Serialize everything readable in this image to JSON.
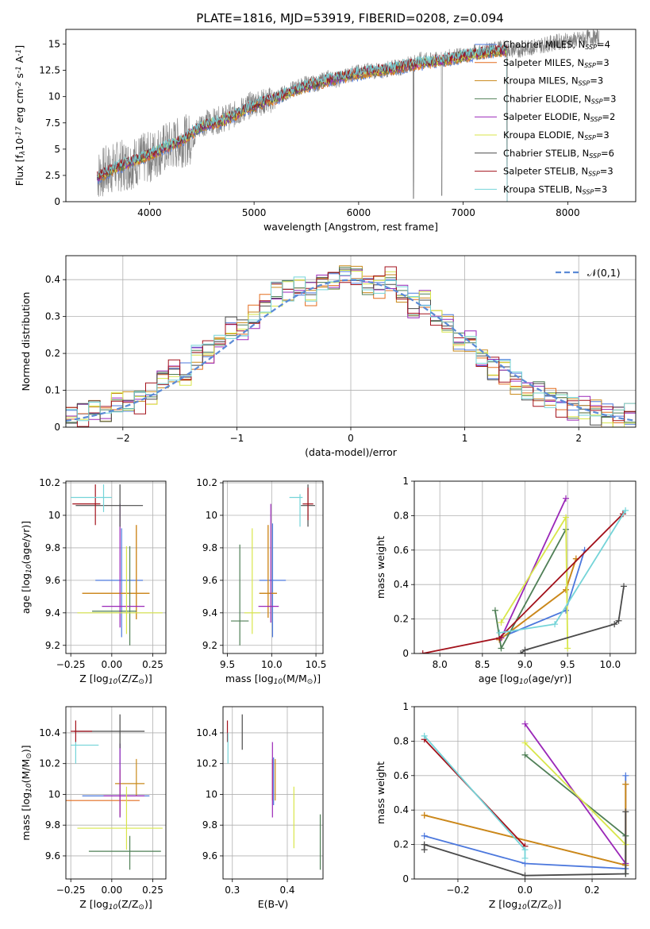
{
  "figure": {
    "title": "PLATE=1816, MJD=53919, FIBERID=0208, z=0.094"
  },
  "models": [
    {
      "name": "Chabrier MILES, N$_{SSP}$=4",
      "label_main": "Chabrier MILES, N",
      "label_sub": "SSP",
      "label_tail": "=4",
      "color": "#4c78dd"
    },
    {
      "name": "Salpeter MILES, N$_{SSP}$=3",
      "label_main": "Salpeter MILES, N",
      "label_sub": "SSP",
      "label_tail": "=3",
      "color": "#e36d1f"
    },
    {
      "name": "Kroupa MILES, N$_{SSP}$=3",
      "label_main": "Kroupa MILES, N",
      "label_sub": "SSP",
      "label_tail": "=3",
      "color": "#c98a1b"
    },
    {
      "name": "Chabrier ELODIE, N$_{SSP}$=3",
      "label_main": "Chabrier ELODIE, N",
      "label_sub": "SSP",
      "label_tail": "=3",
      "color": "#4f7f56"
    },
    {
      "name": "Salpeter ELODIE, N$_{SSP}$=2",
      "label_main": "Salpeter ELODIE, N",
      "label_sub": "SSP",
      "label_tail": "=2",
      "color": "#9a27b8"
    },
    {
      "name": "Kroupa ELODIE, N$_{SSP}$=3",
      "label_main": "Kroupa ELODIE, N",
      "label_sub": "SSP",
      "label_tail": "=3",
      "color": "#d8e64a"
    },
    {
      "name": "Chabrier STELIB, N$_{SSP}$=6",
      "label_main": "Chabrier STELIB, N",
      "label_sub": "SSP",
      "label_tail": "=6",
      "color": "#4a4a4a"
    },
    {
      "name": "Salpeter STELIB, N$_{SSP}$=3",
      "label_main": "Salpeter STELIB, N",
      "label_sub": "SSP",
      "label_tail": "=3",
      "color": "#a3121c"
    },
    {
      "name": "Kroupa STELIB, N$_{SSP}$=3",
      "label_main": "Kroupa STELIB, N",
      "label_sub": "SSP",
      "label_tail": "=3",
      "color": "#74d4d8"
    }
  ],
  "chart_data": [
    {
      "id": "spectrum",
      "type": "line",
      "title": "PLATE=1816, MJD=53919, FIBERID=0208, z=0.094",
      "xlabel": "wavelength [Angstrom, rest frame]",
      "ylabel": "Flux [f$_\\lambda$10$^{-17}$ erg cm$^{-2}$ s$^{-1}$ A$^{-1}$]",
      "xlim": [
        3200,
        8650
      ],
      "ylim": [
        0,
        16.4
      ],
      "xticks": [
        4000,
        5000,
        6000,
        7000,
        8000
      ],
      "yticks": [
        0.0,
        2.5,
        5.0,
        7.5,
        10.0,
        12.5,
        15.0
      ],
      "legend": "upper right",
      "data_color": "#808080",
      "data_x": [
        3500,
        3600,
        3700,
        3800,
        3900,
        4000,
        4100,
        4200,
        4300,
        4400,
        4500,
        4600,
        4700,
        4800,
        4900,
        5000,
        5100,
        5200,
        5300,
        5400,
        5500,
        5600,
        5700,
        5800,
        5900,
        6000,
        6100,
        6200,
        6300,
        6400,
        6500,
        6600,
        6700,
        6800,
        6900,
        7000,
        7100,
        7200,
        7300,
        7400,
        7500,
        7600,
        7700,
        7800,
        7900,
        8000,
        8100,
        8200,
        8300
      ],
      "data_y": [
        2.5,
        3.0,
        3.4,
        3.5,
        4.0,
        4.2,
        4.9,
        5.3,
        5.7,
        6.0,
        7.5,
        7.6,
        7.9,
        8.2,
        8.8,
        9.4,
        9.5,
        9.8,
        10.4,
        10.8,
        11.3,
        11.2,
        11.8,
        11.6,
        12.1,
        12.3,
        12.5,
        12.4,
        12.7,
        12.8,
        13.2,
        13.5,
        13.4,
        13.6,
        13.8,
        13.9,
        14.2,
        14.3,
        14.5,
        14.6,
        14.4,
        14.6,
        14.8,
        15.0,
        15.2,
        15.3,
        15.4,
        15.6,
        15.6
      ],
      "model_x": [
        3500,
        3700,
        3900,
        4100,
        4300,
        4500,
        4700,
        4900,
        5100,
        5300,
        5500,
        5700,
        5900,
        6100,
        6300,
        6500,
        6700,
        6900,
        7100,
        7300,
        7420
      ],
      "model_y": [
        2.3,
        3.3,
        4.1,
        4.9,
        5.8,
        7.2,
        7.7,
        8.7,
        9.5,
        10.2,
        11.0,
        11.5,
        12.0,
        12.4,
        12.6,
        13.0,
        13.3,
        13.6,
        14.0,
        14.3,
        14.4
      ],
      "model_end": 7420
    },
    {
      "id": "residuals",
      "type": "histogram",
      "xlabel": "(data-model)/error",
      "ylabel": "Normed distribution",
      "xlim": [
        -2.5,
        2.5
      ],
      "ylim": [
        0,
        0.465
      ],
      "xticks": [
        -2,
        -1,
        0,
        1,
        2
      ],
      "yticks": [
        0.0,
        0.1,
        0.2,
        0.3,
        0.4
      ],
      "legend": "upper right",
      "reference": {
        "name": "$\\mathcal{N}(0,1)$",
        "color": "#5b8ad6"
      },
      "bins": [
        -2.5,
        -2.4,
        -2.3,
        -2.2,
        -2.1,
        -2.0,
        -1.9,
        -1.8,
        -1.7,
        -1.6,
        -1.5,
        -1.4,
        -1.3,
        -1.2,
        -1.1,
        -1.0,
        -0.9,
        -0.8,
        -0.7,
        -0.6,
        -0.5,
        -0.4,
        -0.3,
        -0.2,
        -0.1,
        0.0,
        0.1,
        0.2,
        0.3,
        0.4,
        0.5,
        0.6,
        0.7,
        0.8,
        0.9,
        1.0,
        1.1,
        1.2,
        1.3,
        1.4,
        1.5,
        1.6,
        1.7,
        1.8,
        1.9,
        2.0,
        2.1,
        2.2,
        2.3,
        2.4,
        2.5
      ],
      "series_base": [
        0.04,
        0.03,
        0.05,
        0.04,
        0.06,
        0.07,
        0.07,
        0.09,
        0.12,
        0.15,
        0.14,
        0.19,
        0.2,
        0.24,
        0.27,
        0.26,
        0.3,
        0.33,
        0.36,
        0.37,
        0.38,
        0.36,
        0.39,
        0.4,
        0.41,
        0.42,
        0.39,
        0.38,
        0.4,
        0.36,
        0.33,
        0.34,
        0.3,
        0.27,
        0.24,
        0.23,
        0.19,
        0.16,
        0.15,
        0.12,
        0.1,
        0.09,
        0.08,
        0.06,
        0.05,
        0.05,
        0.04,
        0.03,
        0.03,
        0.03
      ]
    },
    {
      "id": "age-vs-Z",
      "type": "errorbar",
      "xlabel": "Z [log$_{10}$(Z/Z$_\\odot$)]",
      "ylabel": "age  [log$_{10}$(age/yr)]",
      "xlim": [
        -0.28,
        0.33
      ],
      "ylim": [
        9.15,
        10.21
      ],
      "xticks": [
        -0.25,
        0.0,
        0.25
      ],
      "xtick_labels": [
        "−0.25",
        "0.00",
        "0.25"
      ],
      "yticks": [
        9.2,
        9.4,
        9.6,
        9.8,
        10.0,
        10.2
      ],
      "points": [
        {
          "x": 0.06,
          "y": 9.6,
          "xerr": [
            0.16,
            0.13
          ],
          "yerr": [
            0.35,
            0.32
          ]
        },
        {
          "x": 0.15,
          "y": 9.52,
          "xerr": [
            0.33,
            0.08
          ],
          "yerr": [
            0.16,
            0.42
          ]
        },
        {
          "x": 0.15,
          "y": 9.52,
          "xerr": [
            0.33,
            0.08
          ],
          "yerr": [
            0.16,
            0.42
          ]
        },
        {
          "x": 0.11,
          "y": 9.41,
          "xerr": [
            0.23,
            0.04
          ],
          "yerr": [
            0.21,
            0.4
          ]
        },
        {
          "x": 0.05,
          "y": 9.44,
          "xerr": [
            0.11,
            0.15
          ],
          "yerr": [
            0.13,
            0.63
          ]
        },
        {
          "x": 0.09,
          "y": 9.4,
          "xerr": [
            0.3,
            0.22
          ],
          "yerr": [
            0.13,
            0.41
          ]
        },
        {
          "x": 0.05,
          "y": 10.06,
          "xerr": [
            0.27,
            0.14
          ],
          "yerr": [
            0.13,
            0.13
          ]
        },
        {
          "x": -0.1,
          "y": 10.07,
          "xerr": [
            0.14,
            0.03
          ],
          "yerr": [
            0.13,
            0.12
          ]
        },
        {
          "x": -0.05,
          "y": 10.11,
          "xerr": [
            0.2,
            0.05
          ],
          "yerr": [
            0.09,
            0.08
          ]
        }
      ]
    },
    {
      "id": "age-vs-mass",
      "type": "errorbar",
      "xlabel": "mass [log$_{10}$(M/M$_\\odot$)]",
      "ylabel": "",
      "xlim": [
        9.45,
        10.58
      ],
      "ylim": [
        9.15,
        10.21
      ],
      "xticks": [
        9.5,
        10.0,
        10.5
      ],
      "xtick_labels": [
        "9.5",
        "10.0",
        "10.5"
      ],
      "yticks": [
        9.2,
        9.4,
        9.6,
        9.8,
        10.0,
        10.2
      ],
      "points": [
        {
          "x": 10.01,
          "y": 9.6,
          "xerr": [
            0.15,
            0.15
          ],
          "yerr": [
            0.35,
            0.35
          ]
        },
        {
          "x": 9.96,
          "y": 9.52,
          "xerr": [
            0.1,
            0.1
          ],
          "yerr": [
            0.15,
            0.42
          ]
        },
        {
          "x": 9.96,
          "y": 9.52,
          "xerr": [
            0.1,
            0.1
          ],
          "yerr": [
            0.15,
            0.42
          ]
        },
        {
          "x": 9.64,
          "y": 9.35,
          "xerr": [
            0.1,
            0.1
          ],
          "yerr": [
            0.15,
            0.47
          ]
        },
        {
          "x": 9.99,
          "y": 9.44,
          "xerr": [
            0.14,
            0.09
          ],
          "yerr": [
            0.1,
            0.63
          ]
        },
        {
          "x": 9.78,
          "y": 9.4,
          "xerr": [
            0.09,
            0.09
          ],
          "yerr": [
            0.13,
            0.52
          ]
        },
        {
          "x": 10.41,
          "y": 10.06,
          "xerr": [
            0.08,
            0.08
          ],
          "yerr": [
            0.13,
            0.13
          ]
        },
        {
          "x": 10.41,
          "y": 10.07,
          "xerr": [
            0.06,
            0.06
          ],
          "yerr": [
            0.1,
            0.1
          ]
        },
        {
          "x": 10.32,
          "y": 10.11,
          "xerr": [
            0.12,
            0.03
          ],
          "yerr": [
            0.18,
            0.02
          ]
        }
      ]
    },
    {
      "id": "weight-vs-age",
      "type": "line",
      "xlabel": "age  [log$_{10}$(age/yr)]",
      "ylabel": "mass weight",
      "xlim": [
        7.7,
        10.3
      ],
      "ylim": [
        0,
        1
      ],
      "xticks": [
        8.0,
        8.5,
        9.0,
        9.5,
        10.0
      ],
      "xtick_labels": [
        "8.0",
        "8.5",
        "9.0",
        "9.5",
        "10.0"
      ],
      "yticks": [
        0.0,
        0.2,
        0.4,
        0.6,
        0.8,
        1.0
      ],
      "series": [
        {
          "x": [
            8.7,
            9.48,
            9.7
          ],
          "y": [
            0.09,
            0.25,
            0.6
          ]
        },
        {
          "x": [
            8.7,
            9.48,
            9.6
          ],
          "y": [
            0.08,
            0.37,
            0.55
          ]
        },
        {
          "x": [
            8.7,
            9.48,
            9.6
          ],
          "y": [
            0.08,
            0.37,
            0.55
          ]
        },
        {
          "x": [
            8.65,
            8.72,
            9.48
          ],
          "y": [
            0.25,
            0.03,
            0.72
          ]
        },
        {
          "x": [
            8.72,
            9.48
          ],
          "y": [
            0.09,
            0.9
          ]
        },
        {
          "x": [
            8.72,
            9.48,
            9.5
          ],
          "y": [
            0.18,
            0.79,
            0.03
          ]
        },
        {
          "x": [
            8.95,
            9.0,
            10.05,
            10.1,
            10.16
          ],
          "y": [
            0.0,
            0.02,
            0.17,
            0.19,
            0.39
          ]
        },
        {
          "x": [
            7.8,
            8.7,
            10.15
          ],
          "y": [
            0.0,
            0.09,
            0.81
          ]
        },
        {
          "x": [
            8.7,
            9.35,
            10.18
          ],
          "y": [
            0.12,
            0.17,
            0.83
          ]
        }
      ]
    },
    {
      "id": "mass-vs-Z",
      "type": "errorbar",
      "xlabel": "Z [log$_{10}$(Z/Z$_\\odot$)]",
      "ylabel": "mass [log$_{10}$(M/M$_\\odot$)]",
      "xlim": [
        -0.28,
        0.33
      ],
      "ylim": [
        9.45,
        10.57
      ],
      "xticks": [
        -0.25,
        0.0,
        0.25
      ],
      "xtick_labels": [
        "−0.25",
        "0.00",
        "0.25"
      ],
      "yticks": [
        9.6,
        9.8,
        10.0,
        10.2,
        10.4
      ],
      "points": [
        {
          "x": 0.05,
          "y": 9.99,
          "xerr": [
            0.23,
            0.18
          ],
          "yerr": [
            0.14,
            0.34
          ]
        },
        {
          "x": 0.05,
          "y": 9.96,
          "xerr": [
            0.33,
            0.12
          ],
          "yerr": [
            0.1,
            0.2
          ]
        },
        {
          "x": 0.15,
          "y": 10.07,
          "xerr": [
            0.13,
            0.05
          ],
          "yerr": [
            0.08,
            0.16
          ]
        },
        {
          "x": 0.11,
          "y": 9.63,
          "xerr": [
            0.25,
            0.19
          ],
          "yerr": [
            0.12,
            0.1
          ]
        },
        {
          "x": 0.05,
          "y": 9.99,
          "xerr": [
            0.1,
            0.15
          ],
          "yerr": [
            0.14,
            0.34
          ]
        },
        {
          "x": 0.09,
          "y": 9.78,
          "xerr": [
            0.3,
            0.22
          ],
          "yerr": [
            0.14,
            0.27
          ]
        },
        {
          "x": 0.05,
          "y": 10.41,
          "xerr": [
            0.28,
            0.15
          ],
          "yerr": [
            0.11,
            0.11
          ]
        },
        {
          "x": -0.22,
          "y": 10.41,
          "xerr": [
            0.03,
            0.1
          ],
          "yerr": [
            0.07,
            0.07
          ]
        },
        {
          "x": -0.22,
          "y": 10.32,
          "xerr": [
            0.03,
            0.14
          ],
          "yerr": [
            0.12,
            0.02
          ]
        }
      ]
    },
    {
      "id": "mass-vs-ebv",
      "type": "errorbar",
      "xlabel": "E(B-V)",
      "ylabel": "",
      "xlim": [
        0.283,
        0.465
      ],
      "ylim": [
        9.45,
        10.57
      ],
      "xticks": [
        0.3,
        0.4
      ],
      "xtick_labels": [
        "0.3",
        "0.4"
      ],
      "yticks": [
        9.6,
        9.8,
        10.0,
        10.2,
        10.4
      ],
      "points": [
        {
          "x": 0.375,
          "y": 10.08,
          "yerr": [
            0.15,
            0.16
          ]
        },
        {
          "x": 0.373,
          "y": 10.06,
          "yerr": [
            0.1,
            0.17
          ]
        },
        {
          "x": 0.378,
          "y": 10.06,
          "yerr": [
            0.1,
            0.17
          ]
        },
        {
          "x": 0.46,
          "y": 9.62,
          "yerr": [
            0.11,
            0.25
          ]
        },
        {
          "x": 0.373,
          "y": 10.1,
          "yerr": [
            0.25,
            0.24
          ]
        },
        {
          "x": 0.412,
          "y": 9.85,
          "yerr": [
            0.2,
            0.2
          ]
        },
        {
          "x": 0.318,
          "y": 10.38,
          "yerr": [
            0.09,
            0.14
          ]
        },
        {
          "x": 0.291,
          "y": 10.41,
          "yerr": [
            0.07,
            0.07
          ]
        },
        {
          "x": 0.292,
          "y": 10.32,
          "yerr": [
            0.12,
            0.08
          ]
        }
      ]
    },
    {
      "id": "weight-vs-Z",
      "type": "line",
      "xlabel": "Z [log$_{10}$(Z/Z$_\\odot$)]",
      "ylabel": "mass weight",
      "xlim": [
        -0.33,
        0.33
      ],
      "ylim": [
        0,
        1
      ],
      "xticks": [
        -0.2,
        0.0,
        0.2
      ],
      "xtick_labels": [
        "−0.2",
        "0.0",
        "0.2"
      ],
      "yticks": [
        0.0,
        0.2,
        0.4,
        0.6,
        0.8,
        1.0
      ],
      "series": [
        {
          "x": [
            -0.3,
            0.0,
            0.3,
            0.3
          ],
          "y": [
            0.25,
            0.09,
            0.06,
            0.6
          ]
        },
        {
          "x": [
            -0.3,
            0.3,
            0.3
          ],
          "y": [
            0.37,
            0.08,
            0.55
          ]
        },
        {
          "x": [
            -0.3,
            0.3,
            0.3
          ],
          "y": [
            0.37,
            0.08,
            0.55
          ]
        },
        {
          "x": [
            0.0,
            0.3,
            0.3
          ],
          "y": [
            0.72,
            0.25,
            0.03
          ]
        },
        {
          "x": [
            0.0,
            0.3
          ],
          "y": [
            0.9,
            0.09
          ]
        },
        {
          "x": [
            0.0,
            0.3
          ],
          "y": [
            0.79,
            0.2
          ]
        },
        {
          "x": [
            -0.3,
            -0.3,
            0.0,
            0.3,
            0.3
          ],
          "y": [
            0.17,
            0.2,
            0.02,
            0.03,
            0.39
          ]
        },
        {
          "x": [
            -0.3,
            0.0
          ],
          "y": [
            0.81,
            0.19
          ]
        },
        {
          "x": [
            -0.3,
            0.0,
            0.0
          ],
          "y": [
            0.83,
            0.17,
            0.12
          ]
        }
      ]
    }
  ]
}
